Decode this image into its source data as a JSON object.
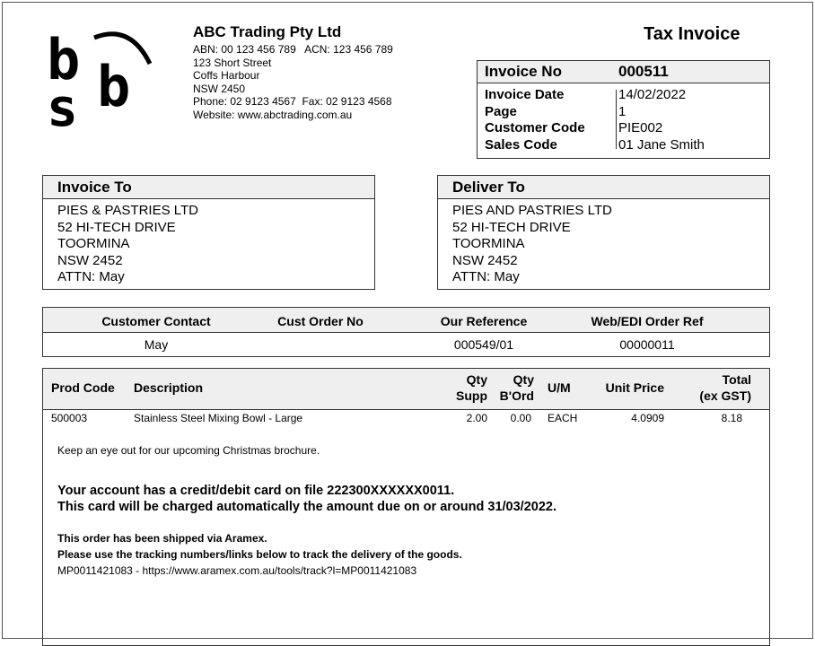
{
  "logo": {
    "text": "bsb"
  },
  "company": {
    "name": "ABC Trading Pty Ltd",
    "lines": [
      "ABN: 00 123 456 789   ACN: 123 456 789",
      "123 Short Street",
      "Coffs Harbour",
      "NSW 2450",
      "Phone: 02 9123 4567  Fax: 02 9123 4568",
      "Website: www.abctrading.com.au"
    ]
  },
  "title": "Tax Invoice",
  "invoice": {
    "no_label": "Invoice No",
    "no": "000511",
    "rows": [
      {
        "label": "Invoice Date",
        "value": "14/02/2022"
      },
      {
        "label": "Page",
        "value": "1"
      },
      {
        "label": "Customer Code",
        "value": "PIE002"
      },
      {
        "label": "Sales Code",
        "value": "01 Jane Smith"
      }
    ]
  },
  "invoice_to": {
    "label": "Invoice To",
    "lines": [
      "PIES & PASTRIES LTD",
      "52 HI-TECH DRIVE",
      "TOORMINA",
      "NSW 2452",
      "ATTN: May"
    ]
  },
  "deliver_to": {
    "label": "Deliver To",
    "lines": [
      "PIES AND PASTRIES LTD",
      "52 HI-TECH DRIVE",
      "TOORMINA",
      "NSW 2452",
      "ATTN: May"
    ]
  },
  "contact": {
    "headers": [
      "Customer Contact",
      "Cust Order No",
      "Our Reference",
      "Web/EDI Order Ref"
    ],
    "values": [
      "May",
      "",
      "000549/01",
      "00000011"
    ]
  },
  "items": {
    "headers": {
      "code": "Prod Code",
      "desc": "Description",
      "qs1": "Qty",
      "qs2": "Supp",
      "qb1": "Qty",
      "qb2": "B'Ord",
      "um": "U/M",
      "price": "Unit Price",
      "t1": "Total",
      "t2": "(ex GST)"
    },
    "rows": [
      {
        "code": "500003",
        "desc": "Stainless Steel Mixing Bowl - Large",
        "qs": "2.00",
        "qb": "0.00",
        "um": "EACH",
        "price": "4.0909",
        "total": "8.18"
      }
    ]
  },
  "notes": {
    "christmas": "Keep an eye out for our upcoming Christmas brochure.",
    "card1": "Your account has a credit/debit card on file 222300XXXXXX0011.",
    "card2": "This card will be charged automatically the amount due on or around 31/03/2022.",
    "ship1": "This order has been shipped via Aramex.",
    "ship2": "Please use the tracking numbers/links below to track the delivery of the goods.",
    "track": "MP0011421083 - https://www.aramex.com.au/tools/track?l=MP0011421083"
  }
}
